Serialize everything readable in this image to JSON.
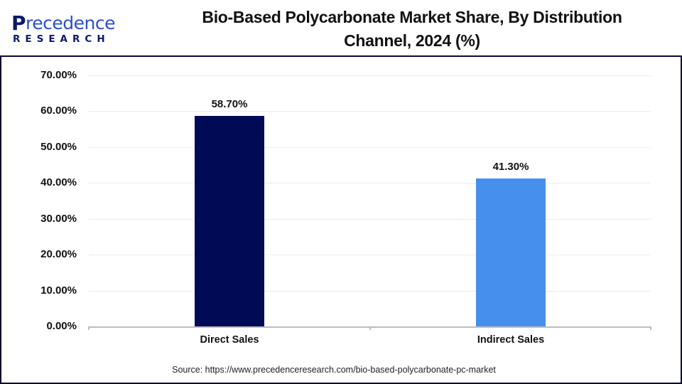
{
  "header": {
    "logo": {
      "line1_initial": "P",
      "line1_rest": "recedence",
      "line2": "RESEARCH"
    },
    "title_line1": "Bio-Based Polycarbonate Market Share, By Distribution",
    "title_line2": "Channel, 2024 (%)"
  },
  "colors": {
    "direct_sales": "#000a55",
    "indirect_sales": "#4690ec",
    "gridline": "#ececec",
    "axis": "#bdbdbd"
  },
  "y_ticks": [
    "70.00%",
    "60.00%",
    "50.00%",
    "40.00%",
    "30.00%",
    "20.00%",
    "10.00%",
    "0.00%"
  ],
  "bars": [
    {
      "category": "Direct Sales",
      "value": 58.7,
      "label": "58.70%"
    },
    {
      "category": "Indirect Sales",
      "value": 41.3,
      "label": "41.30%"
    }
  ],
  "footer": {
    "source": "Source: https://www.precedenceresearch.com/bio-based-polycarbonate-pc-market"
  },
  "chart_data": {
    "type": "bar",
    "title": "Bio-Based Polycarbonate Market Share, By Distribution Channel, 2024 (%)",
    "categories": [
      "Direct Sales",
      "Indirect Sales"
    ],
    "values": [
      58.7,
      41.3
    ],
    "data_labels": [
      "58.70%",
      "41.30%"
    ],
    "xlabel": "",
    "ylabel": "",
    "ylim": [
      0,
      70
    ],
    "ytick_step": 10,
    "ytick_format": "0.00%",
    "grid": true,
    "legend": null,
    "bar_colors": [
      "#000a55",
      "#4690ec"
    ]
  }
}
